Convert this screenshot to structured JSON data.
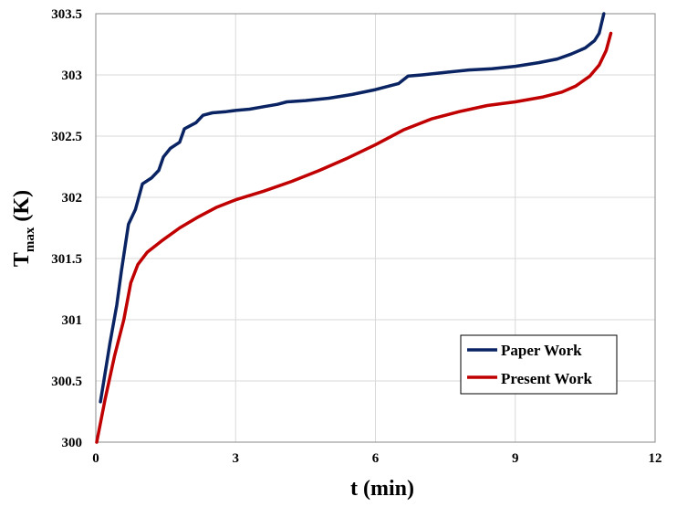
{
  "chart_data": {
    "type": "line",
    "xlabel": "t (min)",
    "ylabel": {
      "base": "T",
      "subscript": "max",
      "suffix": " (K)"
    },
    "xlim": [
      0,
      12
    ],
    "ylim": [
      300,
      303.5
    ],
    "xticks": [
      "0",
      "3",
      "6",
      "9",
      "12"
    ],
    "yticks": [
      "300",
      "300.5",
      "301",
      "301.5",
      "302",
      "302.5",
      "303",
      "303.5"
    ],
    "grid": true,
    "legend_position": "bottom-right",
    "series": [
      {
        "name": "Paper Work",
        "color": "#0a2463",
        "x": [
          0.1,
          0.3,
          0.45,
          0.55,
          0.7,
          0.85,
          1.0,
          1.2,
          1.35,
          1.45,
          1.6,
          1.8,
          1.9,
          2.0,
          2.15,
          2.3,
          2.5,
          2.8,
          3.0,
          3.3,
          3.6,
          3.9,
          4.1,
          4.5,
          5.0,
          5.5,
          6.0,
          6.5,
          6.7,
          7.0,
          7.5,
          8.0,
          8.5,
          9.0,
          9.5,
          9.9,
          10.2,
          10.5,
          10.7,
          10.8,
          10.9
        ],
        "y": [
          300.33,
          300.8,
          301.12,
          301.4,
          301.78,
          301.9,
          302.11,
          302.16,
          302.22,
          302.33,
          302.4,
          302.45,
          302.56,
          302.58,
          302.61,
          302.67,
          302.69,
          302.7,
          302.71,
          302.72,
          302.74,
          302.76,
          302.78,
          302.79,
          302.81,
          302.84,
          302.88,
          302.93,
          302.99,
          303.0,
          303.02,
          303.04,
          303.05,
          303.07,
          303.1,
          303.13,
          303.17,
          303.22,
          303.28,
          303.34,
          303.5
        ]
      },
      {
        "name": "Present Work",
        "color": "#c00000",
        "x": [
          0.02,
          0.2,
          0.4,
          0.6,
          0.75,
          0.9,
          1.1,
          1.4,
          1.8,
          2.2,
          2.6,
          3.0,
          3.6,
          4.2,
          4.8,
          5.4,
          6.0,
          6.6,
          7.2,
          7.8,
          8.4,
          9.0,
          9.6,
          10.0,
          10.3,
          10.6,
          10.8,
          10.95,
          11.05
        ],
        "y": [
          300.0,
          300.35,
          300.7,
          301.0,
          301.3,
          301.45,
          301.55,
          301.64,
          301.75,
          301.84,
          301.92,
          301.98,
          302.05,
          302.13,
          302.22,
          302.32,
          302.43,
          302.55,
          302.64,
          302.7,
          302.75,
          302.78,
          302.82,
          302.86,
          302.91,
          302.99,
          303.08,
          303.2,
          303.34
        ]
      }
    ]
  }
}
